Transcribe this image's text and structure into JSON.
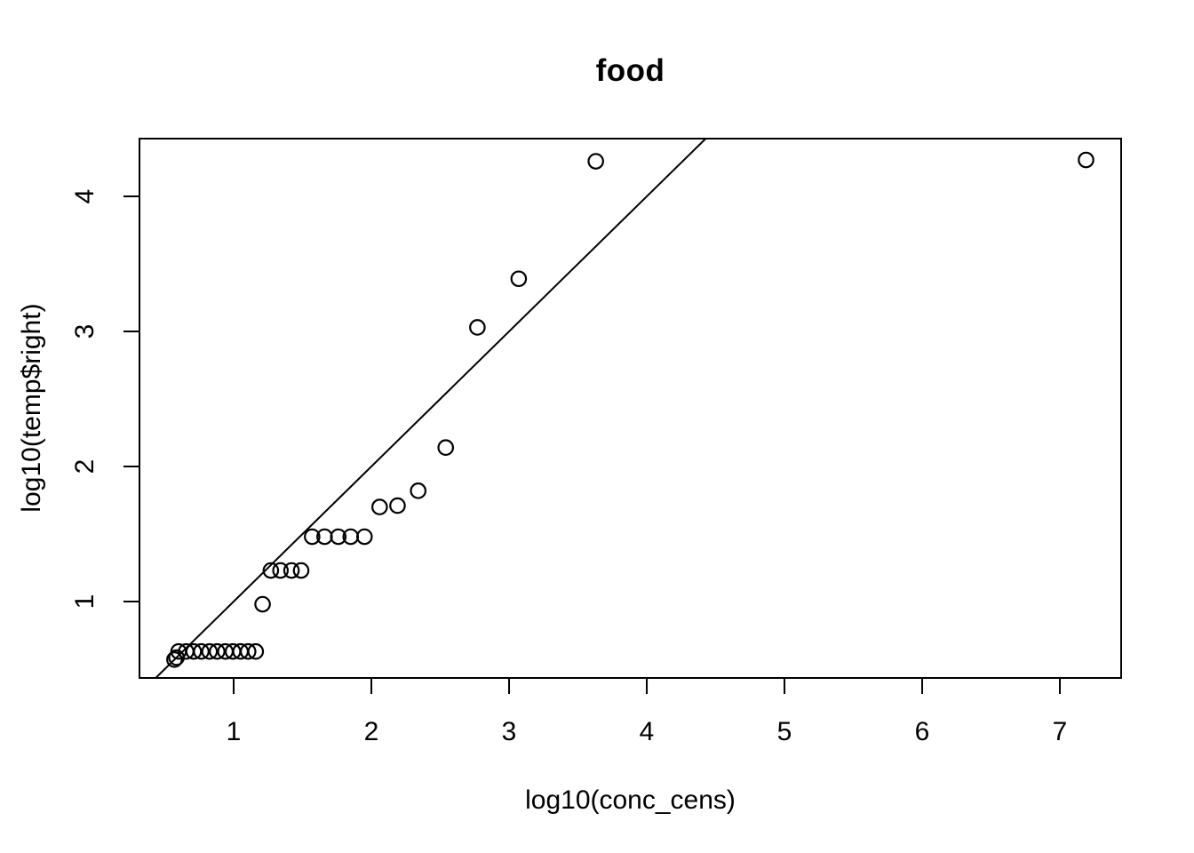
{
  "figure": {
    "title": "food",
    "xlabel": "log10(conc_cens)",
    "ylabel": "log10(temp$right)"
  },
  "colors": {
    "foreground": "#000000",
    "background": "#ffffff"
  },
  "chart_data": {
    "type": "scatter",
    "title": "food",
    "xlabel": "log10(conc_cens)",
    "ylabel": "log10(temp$right)",
    "xlim": [
      0.316,
      7.445
    ],
    "ylim": [
      0.434,
      4.428
    ],
    "x_ticks": [
      1,
      2,
      3,
      4,
      5,
      6,
      7
    ],
    "y_ticks": [
      1,
      2,
      3,
      4
    ],
    "grid": false,
    "legend": null,
    "marker": "open-circle",
    "points": [
      [
        0.57,
        0.57
      ],
      [
        0.585,
        0.585
      ],
      [
        0.6,
        0.63
      ],
      [
        0.655,
        0.63
      ],
      [
        0.71,
        0.63
      ],
      [
        0.765,
        0.63
      ],
      [
        0.825,
        0.63
      ],
      [
        0.88,
        0.63
      ],
      [
        0.94,
        0.63
      ],
      [
        0.995,
        0.63
      ],
      [
        1.05,
        0.63
      ],
      [
        1.105,
        0.63
      ],
      [
        1.16,
        0.63
      ],
      [
        1.21,
        0.98
      ],
      [
        1.27,
        1.23
      ],
      [
        1.34,
        1.23
      ],
      [
        1.42,
        1.23
      ],
      [
        1.49,
        1.23
      ],
      [
        1.57,
        1.48
      ],
      [
        1.66,
        1.48
      ],
      [
        1.76,
        1.48
      ],
      [
        1.85,
        1.48
      ],
      [
        1.95,
        1.48
      ],
      [
        2.06,
        1.7
      ],
      [
        2.19,
        1.71
      ],
      [
        2.34,
        1.82
      ],
      [
        2.54,
        2.14
      ],
      [
        2.77,
        3.03
      ],
      [
        3.07,
        3.39
      ],
      [
        3.63,
        4.26
      ],
      [
        7.19,
        4.27
      ]
    ],
    "reference_line": {
      "description": "y = x identity line",
      "slope": 1,
      "intercept": 0,
      "x1": 0.434,
      "y1": 0.434,
      "x2": 4.428,
      "y2": 4.428
    }
  }
}
